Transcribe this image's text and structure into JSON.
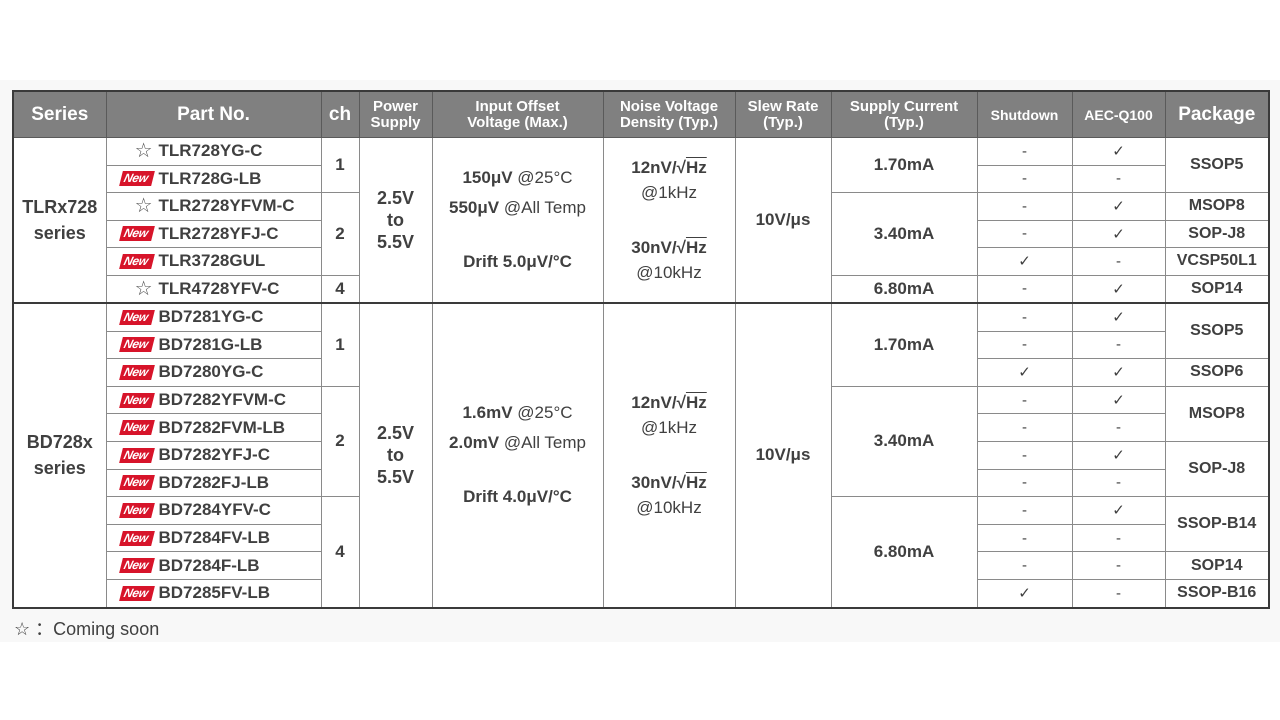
{
  "headers": {
    "series": "Series",
    "part_no": "Part No.",
    "ch": "ch",
    "power_supply": [
      "Power",
      "Supply"
    ],
    "input_offset": [
      "Input Offset",
      "Voltage (Max.)"
    ],
    "noise": [
      "Noise Voltage",
      "Density (Typ.)"
    ],
    "slew": [
      "Slew Rate",
      "(Typ.)"
    ],
    "supply_current": [
      "Supply Current",
      "(Typ.)"
    ],
    "shutdown": "Shutdown",
    "aec": "AEC-Q100",
    "package": "Package"
  },
  "groups": [
    {
      "series": [
        "TLRx728",
        "series"
      ],
      "power": [
        "2.5V",
        "to",
        "5.5V"
      ],
      "offset": {
        "v25": "150μV",
        "v25_cond": "@25°C",
        "vall": "550μV",
        "vall_cond": "@All Temp",
        "drift": "Drift 5.0μV/°C"
      },
      "noise": {
        "n1": "12nV/",
        "n1_unit": "Hz",
        "n1_cond": "@1kHz",
        "n2": "30nV/",
        "n2_unit": "Hz",
        "n2_cond": "@10kHz"
      },
      "slew": "10V/μs",
      "rows": [
        {
          "mark": "star",
          "part": "TLR728YG-C",
          "shutdown": "-",
          "aec": "✓"
        },
        {
          "mark": "new",
          "part": "TLR728G-LB",
          "shutdown": "-",
          "aec": "-"
        },
        {
          "mark": "star",
          "part": "TLR2728YFVM-C",
          "shutdown": "-",
          "aec": "✓"
        },
        {
          "mark": "new",
          "part": "TLR2728YFJ-C",
          "shutdown": "-",
          "aec": "✓"
        },
        {
          "mark": "new",
          "part": "TLR3728GUL",
          "shutdown": "✓",
          "aec": "-"
        },
        {
          "mark": "star",
          "part": "TLR4728YFV-C",
          "shutdown": "-",
          "aec": "✓"
        }
      ],
      "ch": [
        "1",
        "2",
        "4"
      ],
      "current": [
        "1.70mA",
        "3.40mA",
        "6.80mA"
      ],
      "packages": [
        "SSOP5",
        "MSOP8",
        "SOP-J8",
        "VCSP50L1",
        "SOP14"
      ]
    },
    {
      "series": [
        "BD728x",
        "series"
      ],
      "power": [
        "2.5V",
        "to",
        "5.5V"
      ],
      "offset": {
        "v25": "1.6mV",
        "v25_cond": "@25°C",
        "vall": "2.0mV",
        "vall_cond": "@All Temp",
        "drift": "Drift 4.0μV/°C"
      },
      "noise": {
        "n1": "12nV/",
        "n1_unit": "Hz",
        "n1_cond": "@1kHz",
        "n2": "30nV/",
        "n2_unit": "Hz",
        "n2_cond": "@10kHz"
      },
      "slew": "10V/μs",
      "rows": [
        {
          "mark": "new",
          "part": "BD7281YG-C",
          "shutdown": "-",
          "aec": "✓"
        },
        {
          "mark": "new",
          "part": "BD7281G-LB",
          "shutdown": "-",
          "aec": "-"
        },
        {
          "mark": "new",
          "part": "BD7280YG-C",
          "shutdown": "✓",
          "aec": "✓"
        },
        {
          "mark": "new",
          "part": "BD7282YFVM-C",
          "shutdown": "-",
          "aec": "✓"
        },
        {
          "mark": "new",
          "part": "BD7282FVM-LB",
          "shutdown": "-",
          "aec": "-"
        },
        {
          "mark": "new",
          "part": "BD7282YFJ-C",
          "shutdown": "-",
          "aec": "✓"
        },
        {
          "mark": "new",
          "part": "BD7282FJ-LB",
          "shutdown": "-",
          "aec": "-"
        },
        {
          "mark": "new",
          "part": "BD7284YFV-C",
          "shutdown": "-",
          "aec": "✓"
        },
        {
          "mark": "new",
          "part": "BD7284FV-LB",
          "shutdown": "-",
          "aec": "-"
        },
        {
          "mark": "new",
          "part": "BD7284F-LB",
          "shutdown": "-",
          "aec": "-"
        },
        {
          "mark": "new",
          "part": "BD7285FV-LB",
          "shutdown": "✓",
          "aec": "-"
        }
      ],
      "ch": [
        "1",
        "2",
        "4"
      ],
      "current": [
        "1.70mA",
        "3.40mA",
        "6.80mA"
      ],
      "packages": [
        "SSOP5",
        "SSOP6",
        "MSOP8",
        "SOP-J8",
        "SSOP-B14",
        "SOP14",
        "SSOP-B16"
      ]
    }
  ],
  "badge_new": "New",
  "footnote": {
    "symbol": "☆",
    "text": "：Coming soon"
  },
  "colors": {
    "header_bg": "#808080",
    "new_badge": "#d7142a",
    "text": "#404040"
  }
}
